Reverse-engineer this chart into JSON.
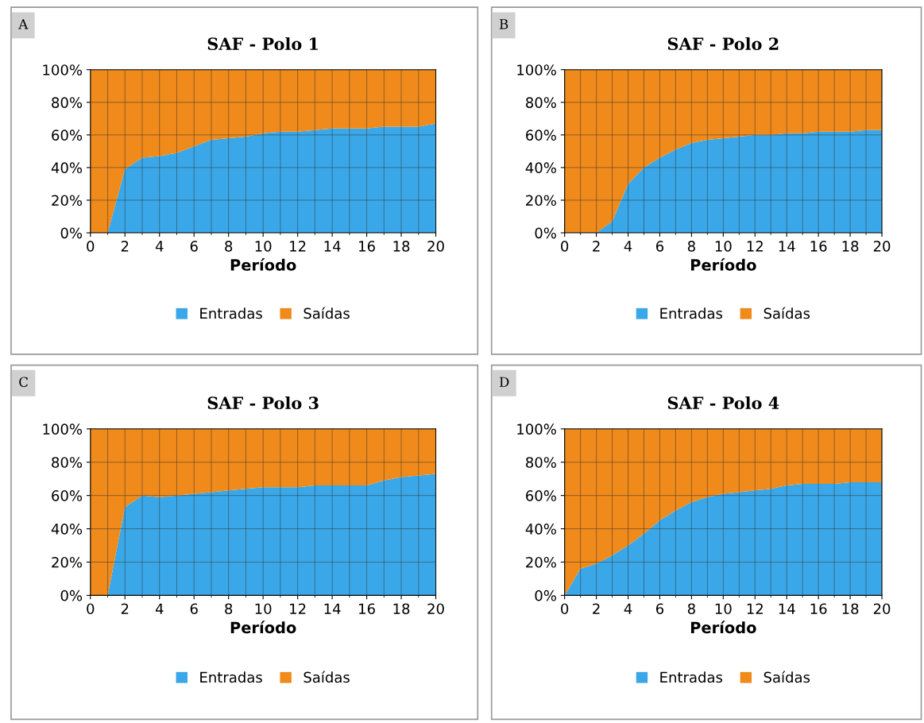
{
  "chart_data": [
    {
      "type": "area",
      "title": "SAF - Polo 1",
      "xlabel": "Período",
      "annotations": [
        "A"
      ],
      "stacked": true,
      "grid": true,
      "legend": "bottom",
      "x": [
        0,
        1,
        2,
        3,
        4,
        5,
        6,
        7,
        8,
        9,
        10,
        11,
        12,
        13,
        14,
        15,
        16,
        17,
        18,
        19,
        20
      ],
      "xlim": [
        0,
        20
      ],
      "xticks": [
        0,
        2,
        4,
        6,
        8,
        10,
        12,
        14,
        16,
        18,
        20
      ],
      "ylim": [
        0,
        100
      ],
      "yticks": [
        {
          "value": 0,
          "label": "0%"
        },
        {
          "value": 20,
          "label": "20%"
        },
        {
          "value": 40,
          "label": "40%"
        },
        {
          "value": 60,
          "label": "60%"
        },
        {
          "value": 80,
          "label": "80%"
        },
        {
          "value": 100,
          "label": "100%"
        }
      ],
      "series": [
        {
          "name": "Entradas",
          "color": "#3aa8e8",
          "values": [
            0,
            0,
            39,
            46,
            47,
            49,
            53,
            57,
            58,
            59,
            61,
            62,
            62,
            63,
            64,
            64,
            64,
            65,
            65,
            65,
            67
          ]
        },
        {
          "name": "Saídas",
          "color": "#f08a1a",
          "values": [
            100,
            100,
            61,
            54,
            53,
            51,
            47,
            43,
            42,
            41,
            39,
            38,
            38,
            37,
            36,
            36,
            36,
            35,
            35,
            35,
            33
          ]
        }
      ]
    },
    {
      "type": "area",
      "title": "SAF - Polo 2",
      "xlabel": "Período",
      "annotations": [
        "B"
      ],
      "stacked": true,
      "grid": true,
      "legend": "bottom",
      "x": [
        0,
        1,
        2,
        3,
        4,
        5,
        6,
        7,
        8,
        9,
        10,
        11,
        12,
        13,
        14,
        15,
        16,
        17,
        18,
        19,
        20
      ],
      "xlim": [
        0,
        20
      ],
      "xticks": [
        0,
        2,
        4,
        6,
        8,
        10,
        12,
        14,
        16,
        18,
        20
      ],
      "ylim": [
        0,
        100
      ],
      "yticks": [
        {
          "value": 0,
          "label": "0%"
        },
        {
          "value": 20,
          "label": "20%"
        },
        {
          "value": 40,
          "label": "40%"
        },
        {
          "value": 60,
          "label": "60%"
        },
        {
          "value": 80,
          "label": "80%"
        },
        {
          "value": 100,
          "label": "100%"
        }
      ],
      "series": [
        {
          "name": "Entradas",
          "color": "#3aa8e8",
          "values": [
            0,
            0,
            0,
            7,
            30,
            40,
            46,
            51,
            55,
            57,
            58,
            59,
            60,
            60,
            61,
            61,
            62,
            62,
            62,
            63,
            63
          ]
        },
        {
          "name": "Saídas",
          "color": "#f08a1a",
          "values": [
            100,
            100,
            100,
            93,
            70,
            60,
            54,
            49,
            45,
            43,
            42,
            41,
            40,
            40,
            39,
            39,
            38,
            38,
            38,
            37,
            37
          ]
        }
      ]
    },
    {
      "type": "area",
      "title": "SAF - Polo 3",
      "xlabel": "Período",
      "annotations": [
        "C"
      ],
      "stacked": true,
      "grid": true,
      "legend": "bottom",
      "x": [
        0,
        1,
        2,
        3,
        4,
        5,
        6,
        7,
        8,
        9,
        10,
        11,
        12,
        13,
        14,
        15,
        16,
        17,
        18,
        19,
        20
      ],
      "xlim": [
        0,
        20
      ],
      "xticks": [
        0,
        2,
        4,
        6,
        8,
        10,
        12,
        14,
        16,
        18,
        20
      ],
      "ylim": [
        0,
        100
      ],
      "yticks": [
        {
          "value": 0,
          "label": "0%"
        },
        {
          "value": 20,
          "label": "20%"
        },
        {
          "value": 40,
          "label": "40%"
        },
        {
          "value": 60,
          "label": "60%"
        },
        {
          "value": 80,
          "label": "80%"
        },
        {
          "value": 100,
          "label": "100%"
        }
      ],
      "series": [
        {
          "name": "Entradas",
          "color": "#3aa8e8",
          "values": [
            0,
            0,
            53,
            60,
            59,
            60,
            61,
            62,
            63,
            64,
            65,
            65,
            65,
            66,
            66,
            66,
            66,
            69,
            71,
            72,
            73
          ]
        },
        {
          "name": "Saídas",
          "color": "#f08a1a",
          "values": [
            100,
            100,
            47,
            40,
            41,
            40,
            39,
            38,
            37,
            36,
            35,
            35,
            35,
            34,
            34,
            34,
            34,
            31,
            29,
            28,
            27
          ]
        }
      ]
    },
    {
      "type": "area",
      "title": "SAF - Polo 4",
      "xlabel": "Período",
      "annotations": [
        "D"
      ],
      "stacked": true,
      "grid": true,
      "legend": "bottom",
      "x": [
        0,
        1,
        2,
        3,
        4,
        5,
        6,
        7,
        8,
        9,
        10,
        11,
        12,
        13,
        14,
        15,
        16,
        17,
        18,
        19,
        20
      ],
      "xlim": [
        0,
        20
      ],
      "xticks": [
        0,
        2,
        4,
        6,
        8,
        10,
        12,
        14,
        16,
        18,
        20
      ],
      "ylim": [
        0,
        100
      ],
      "yticks": [
        {
          "value": 0,
          "label": "0%"
        },
        {
          "value": 20,
          "label": "20%"
        },
        {
          "value": 40,
          "label": "40%"
        },
        {
          "value": 60,
          "label": "60%"
        },
        {
          "value": 80,
          "label": "80%"
        },
        {
          "value": 100,
          "label": "100%"
        }
      ],
      "series": [
        {
          "name": "Entradas",
          "color": "#3aa8e8",
          "values": [
            0,
            16,
            19,
            24,
            30,
            37,
            45,
            51,
            56,
            59,
            61,
            62,
            63,
            64,
            66,
            67,
            67,
            67,
            68,
            68,
            68
          ]
        },
        {
          "name": "Saídas",
          "color": "#f08a1a",
          "values": [
            100,
            84,
            81,
            76,
            70,
            63,
            55,
            49,
            44,
            41,
            39,
            38,
            37,
            36,
            34,
            33,
            33,
            33,
            32,
            32,
            32
          ]
        }
      ]
    }
  ]
}
